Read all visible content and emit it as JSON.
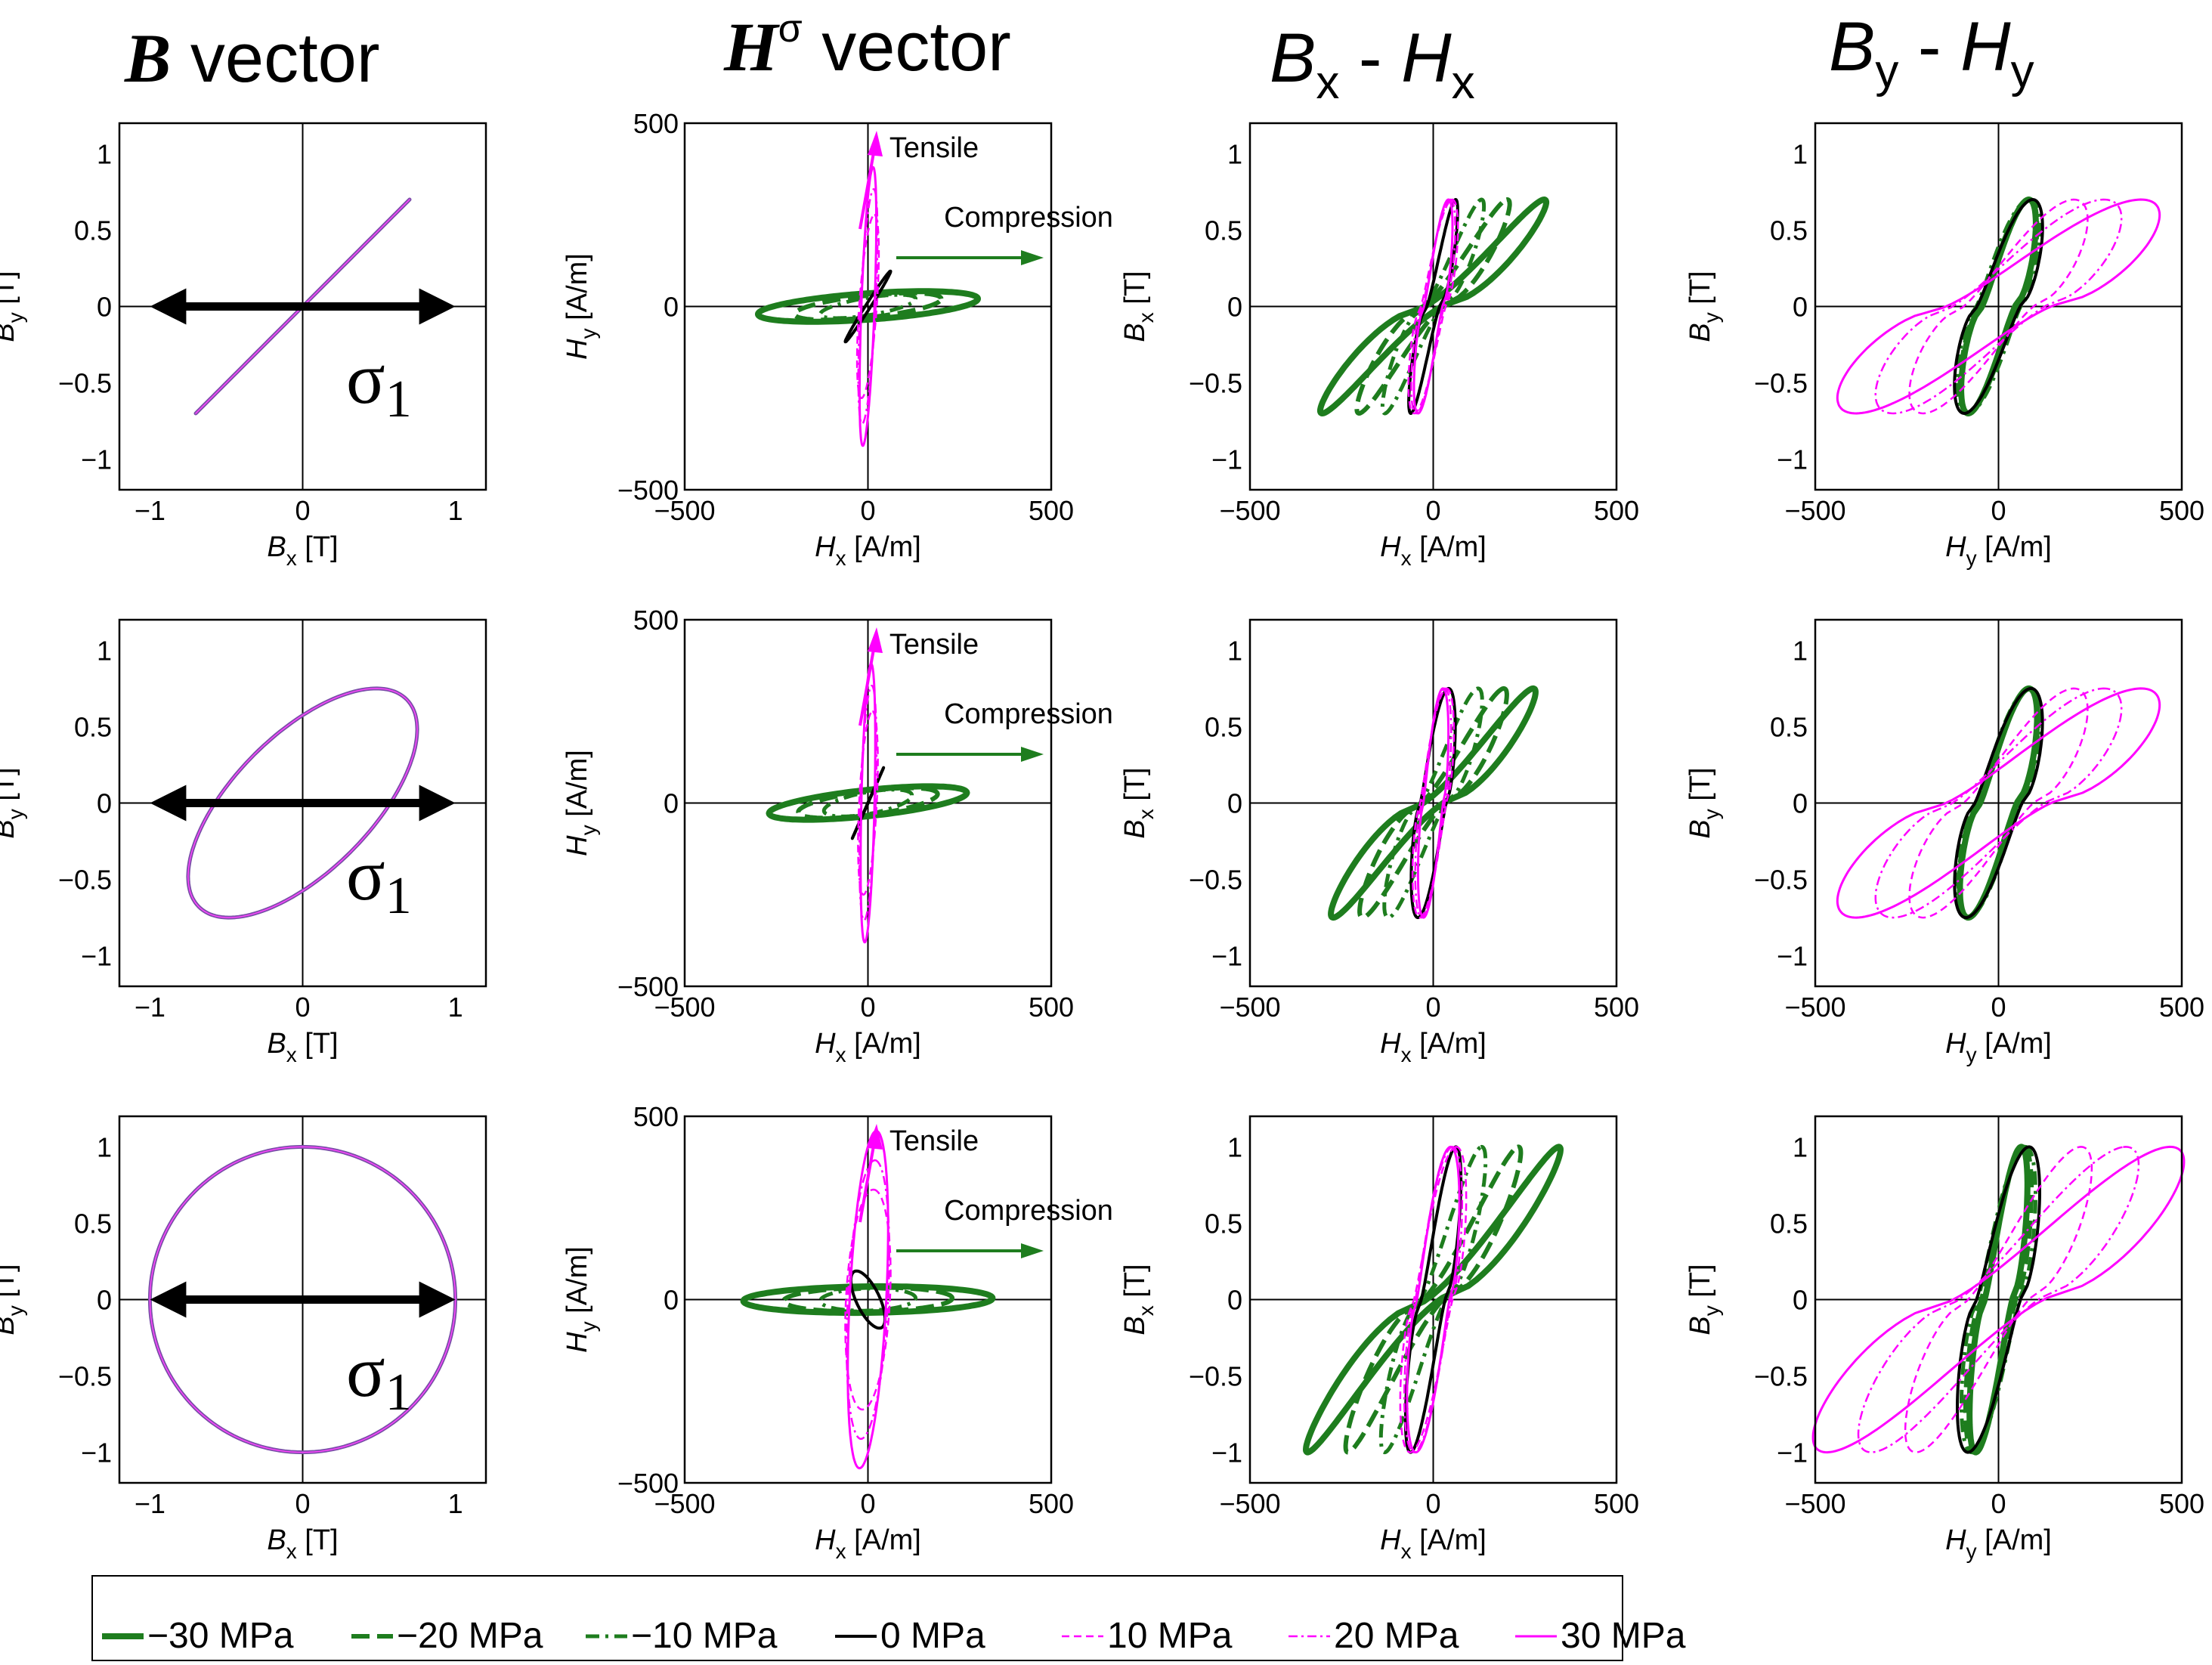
{
  "column_headers": {
    "b_vector": {
      "sym": "B",
      "rest": " vector"
    },
    "h_vector": {
      "sym": "H",
      "sup": "σ",
      "rest": " vector"
    },
    "bx_hx": {
      "a": "B",
      "asub": "x",
      "mid": " - ",
      "b": "H",
      "bsub": "x"
    },
    "by_hy": {
      "a": "B",
      "asub": "y",
      "mid": " - ",
      "b": "H",
      "bsub": "y"
    }
  },
  "axis_text": {
    "bx_label": {
      "sym": "B",
      "sub": "x",
      "unit": " [T]"
    },
    "by_label": {
      "sym": "B",
      "sub": "y",
      "unit": " [T]"
    },
    "hx_label": {
      "sym": "H",
      "sub": "x",
      "unit": " [A/m]"
    },
    "hy_label": {
      "sym": "H",
      "sub": "y",
      "unit": " [A/m]"
    },
    "row3_bx_label": {
      "sym": "B",
      "sub": "x",
      "unit": " [T]"
    },
    "row3_hx_label": {
      "sym": "H",
      "sub": "x",
      "unit": " [A/m]"
    },
    "b_ticks": [
      "1",
      "0.5",
      "0",
      "−0.5",
      "−1"
    ],
    "b_xticks": [
      "−1",
      "0",
      "1"
    ],
    "h_yticks": [
      "500",
      "0",
      "−500"
    ],
    "h_xticks": [
      "−500",
      "0",
      "500"
    ]
  },
  "annotations": {
    "sigma_symbol": "σ",
    "sigma_sub": "1",
    "tensile": "Tensile",
    "compression": "Compression"
  },
  "legend": {
    "entries": [
      {
        "label": "−30 MPa",
        "color": "#1e7d1e",
        "style": "solid-thick"
      },
      {
        "label": "−20 MPa",
        "color": "#1e7d1e",
        "style": "dashed-thick"
      },
      {
        "label": "−10 MPa",
        "color": "#1e7d1e",
        "style": "dashdot"
      },
      {
        "label": "0 MPa",
        "color": "#000000",
        "style": "solid"
      },
      {
        "label": "10 MPa",
        "color": "#ff00ff",
        "style": "dashed-thin"
      },
      {
        "label": "20 MPa",
        "color": "#ff00ff",
        "style": "dashdot-thin"
      },
      {
        "label": "30 MPa",
        "color": "#ff00ff",
        "style": "solid-thin"
      }
    ]
  },
  "colors": {
    "compressive": "#1e7d1e",
    "zero": "#000000",
    "tensile": "#ff00ff",
    "b_locus": "#7a4fa8"
  },
  "chart_data": [
    {
      "row": 1,
      "b_vector": {
        "type": "line",
        "bx_amp": 0.7,
        "by_amp": 0.7,
        "phase_deg": 0,
        "xlim": [
          -1.2,
          1.2
        ],
        "ylim": [
          -1.2,
          1.2
        ],
        "xlabel": "Bx [T]",
        "ylabel": "By [T]"
      },
      "h_amp": {
        "stress_MPa": [
          -30,
          -20,
          -10,
          0,
          10,
          20,
          30
        ],
        "hx": [
          300,
          200,
          130,
          60,
          50,
          45,
          40
        ],
        "hy": [
          60,
          60,
          60,
          90,
          250,
          320,
          380
        ],
        "width": [
          60,
          50,
          40,
          25,
          40,
          35,
          30
        ]
      },
      "by_hy_amp": [
        80,
        80,
        80,
        90,
        200,
        280,
        380
      ],
      "by_hy_width": [
        55,
        60,
        70,
        70,
        120,
        160,
        190
      ],
      "b_amp": 0.7,
      "h_lim": [
        -500,
        500
      ]
    },
    {
      "row": 2,
      "b_vector": {
        "type": "line",
        "bx_amp": 0.75,
        "by_amp": 0.75,
        "phase_deg": 50,
        "xlim": [
          -1.2,
          1.2
        ],
        "ylim": [
          -1.2,
          1.2
        ],
        "xlabel": "Bx [T]",
        "ylabel": "By [T]"
      },
      "h_amp": {
        "stress_MPa": [
          -30,
          -20,
          -10,
          0,
          10,
          20,
          30
        ],
        "hx": [
          270,
          190,
          120,
          40,
          35,
          30,
          25
        ],
        "hy": [
          80,
          70,
          60,
          90,
          250,
          320,
          380
        ],
        "width": [
          60,
          55,
          50,
          40,
          40,
          35,
          30
        ]
      },
      "by_hy_amp": [
        80,
        80,
        80,
        85,
        200,
        280,
        380
      ],
      "by_hy_width": [
        60,
        65,
        70,
        75,
        120,
        160,
        190
      ],
      "b_amp": 0.75,
      "h_lim": [
        -500,
        500
      ]
    },
    {
      "row": 3,
      "b_vector": {
        "type": "line",
        "bx_amp": 1.0,
        "by_amp": 1.0,
        "phase_deg": 90,
        "xlim": [
          -1.2,
          1.2
        ],
        "ylim": [
          -1.2,
          1.2
        ],
        "xlabel": "Bx [T]",
        "ylabel": "By [T]"
      },
      "h_amp": {
        "stress_MPa": [
          -30,
          -20,
          -10,
          0,
          10,
          20,
          30
        ],
        "hx": [
          340,
          230,
          130,
          60,
          60,
          50,
          45
        ],
        "hy": [
          55,
          55,
          55,
          90,
          300,
          380,
          460
        ],
        "width": [
          60,
          55,
          50,
          40,
          60,
          55,
          50
        ]
      },
      "by_hy_amp": [
        60,
        65,
        70,
        80,
        220,
        340,
        460
      ],
      "by_hy_width": [
        45,
        55,
        65,
        70,
        110,
        150,
        180
      ],
      "b_amp": 1.0,
      "h_lim": [
        -500,
        500
      ]
    }
  ]
}
